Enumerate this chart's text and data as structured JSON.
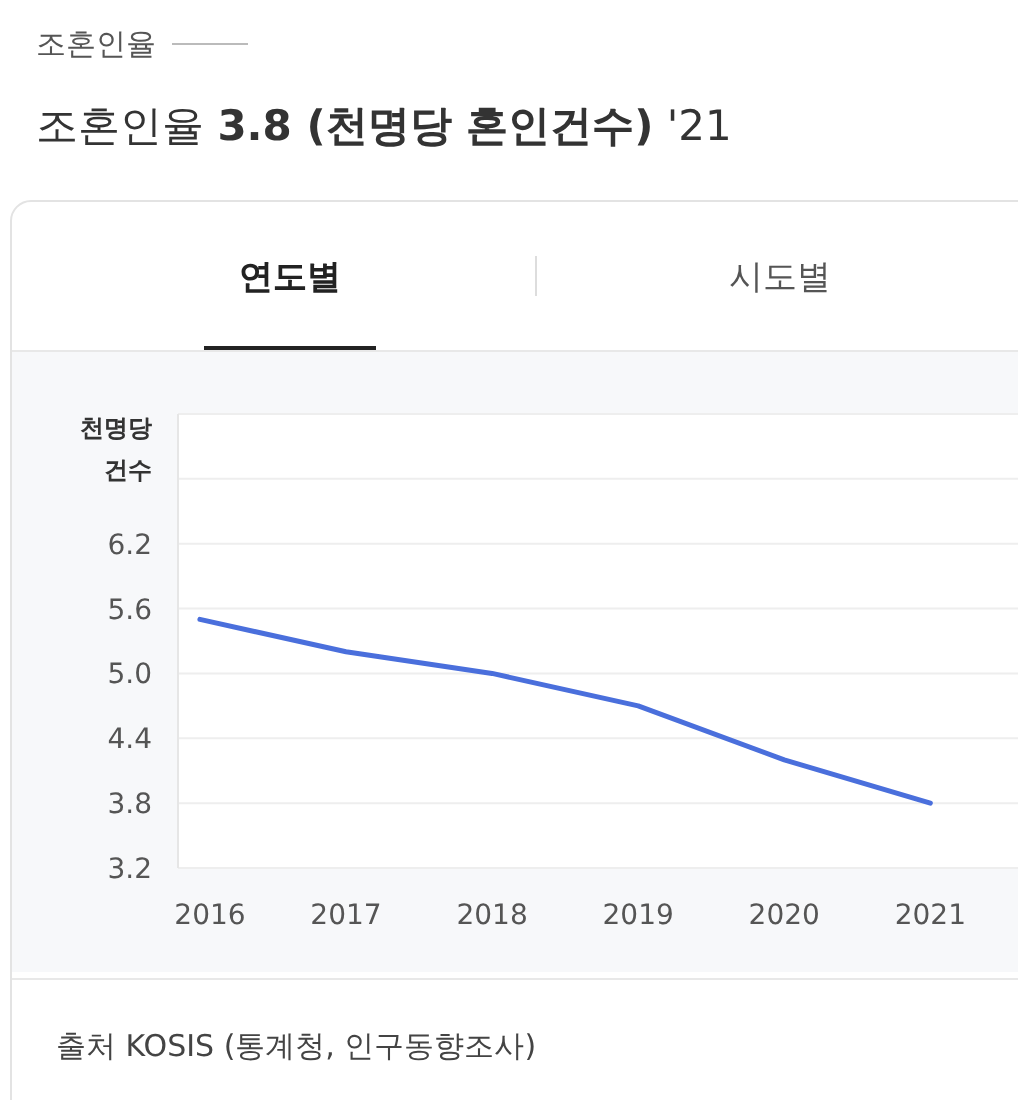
{
  "chart_data": {
    "type": "line",
    "subtitle": "조혼인율",
    "title": "조혼인율 **3.8 (천명당 혼인건수)** '21",
    "annotations": [
      "연도별",
      "시도별",
      "출처 KOSIS (통계청, 인구동향조사)"
    ],
    "ylabel": "천명당 건수",
    "x": [
      2016,
      2017,
      2018,
      2019,
      2020,
      2021
    ],
    "series": [
      {
        "color": "#4a6fdc",
        "values": [
          5.5,
          5.2,
          5.0,
          4.7,
          4.2,
          3.8
        ]
      }
    ],
    "xlim": [
      2015.85,
      2021.6
    ],
    "xticks": [
      2016,
      2017,
      2018,
      2019,
      2020,
      2021
    ],
    "ylim": [
      3.2,
      7.4
    ],
    "yticks": [
      3.2,
      3.8,
      4.4,
      {
        "value": 5.0,
        "label": "5.0"
      },
      5.6,
      6.2,
      {
        "value": 6.8,
        "label": null
      },
      {
        "value": 7.4,
        "label": null
      }
    ],
    "grid": "y",
    "marker": "none",
    "line_style": "solid"
  }
}
